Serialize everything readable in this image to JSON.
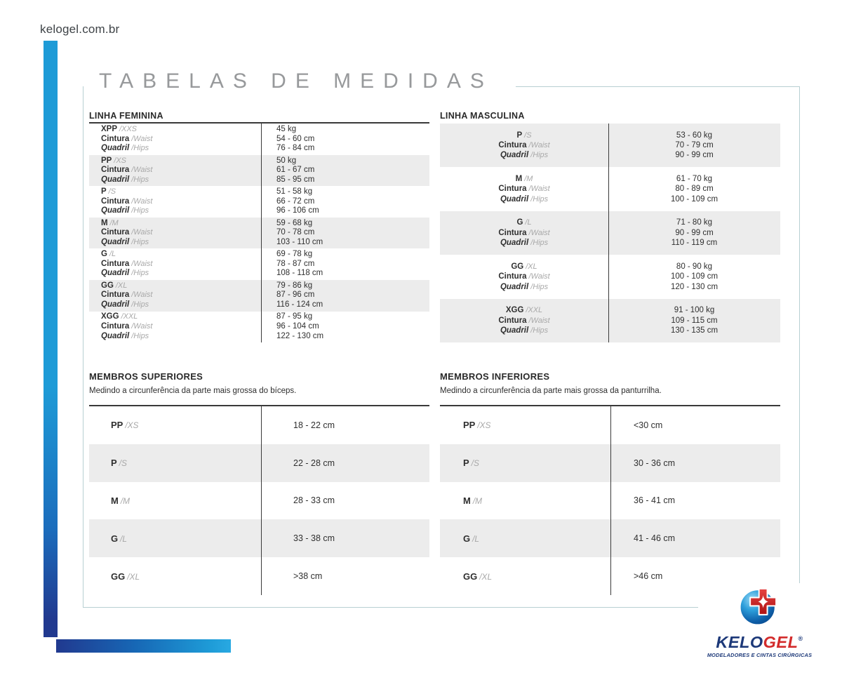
{
  "page": {
    "site": "kelogel.com.br",
    "title": "TABELAS DE MEDIDAS"
  },
  "labels": {
    "cintura": "Cintura",
    "waist": "/Waist",
    "quadril": "Quadril",
    "hips": "/Hips"
  },
  "linha_feminina": {
    "title": "LINHA FEMININA",
    "rows": [
      {
        "size": "XPP",
        "size_alt": "/XXS",
        "weight": "45 kg",
        "waist": "54 - 60 cm",
        "hips": "76 - 84 cm",
        "shaded": false
      },
      {
        "size": "PP",
        "size_alt": "/XS",
        "weight": "50 kg",
        "waist": "61 - 67 cm",
        "hips": "85 - 95 cm",
        "shaded": true
      },
      {
        "size": "P",
        "size_alt": "/S",
        "weight": "51 - 58 kg",
        "waist": "66 - 72 cm",
        "hips": "96 - 106 cm",
        "shaded": false
      },
      {
        "size": "M",
        "size_alt": "/M",
        "weight": "59 - 68 kg",
        "waist": "70 - 78 cm",
        "hips": "103 - 110 cm",
        "shaded": true
      },
      {
        "size": "G",
        "size_alt": "/L",
        "weight": "69 - 78 kg",
        "waist": "78 - 87 cm",
        "hips": "108 - 118 cm",
        "shaded": false
      },
      {
        "size": "GG",
        "size_alt": "/XL",
        "weight": "79 - 86 kg",
        "waist": "87 - 96 cm",
        "hips": "116 - 124 cm",
        "shaded": true
      },
      {
        "size": "XGG",
        "size_alt": "/XXL",
        "weight": "87 - 95 kg",
        "waist": "96 - 104 cm",
        "hips": "122 - 130 cm",
        "shaded": false
      }
    ]
  },
  "linha_masculina": {
    "title": "LINHA MASCULINA",
    "rows": [
      {
        "size": "P",
        "size_alt": "/S",
        "weight": "53 - 60 kg",
        "waist": "70 - 79 cm",
        "hips": "90 - 99 cm",
        "shaded": true
      },
      {
        "size": "M",
        "size_alt": "/M",
        "weight": "61 - 70 kg",
        "waist": "80 - 89 cm",
        "hips": "100 - 109 cm",
        "shaded": false
      },
      {
        "size": "G",
        "size_alt": "/L",
        "weight": "71 - 80 kg",
        "waist": "90 - 99 cm",
        "hips": "110 - 119 cm",
        "shaded": true
      },
      {
        "size": "GG",
        "size_alt": "/XL",
        "weight": "80 - 90 kg",
        "waist": "100 - 109 cm",
        "hips": "120 - 130 cm",
        "shaded": false
      },
      {
        "size": "XGG",
        "size_alt": "/XXL",
        "weight": "91 - 100 kg",
        "waist": "109 - 115 cm",
        "hips": "130 - 135 cm",
        "shaded": true
      }
    ]
  },
  "membros_superiores": {
    "title": "MEMBROS SUPERIORES",
    "description": "Medindo a circunferência da parte mais grossa do bíceps.",
    "rows": [
      {
        "size": "PP",
        "size_alt": "/XS",
        "value": "18 - 22 cm",
        "shaded": false
      },
      {
        "size": "P",
        "size_alt": "/S",
        "value": "22 - 28 cm",
        "shaded": true
      },
      {
        "size": "M",
        "size_alt": "/M",
        "value": "28 - 33 cm",
        "shaded": false
      },
      {
        "size": "G",
        "size_alt": "/L",
        "value": "33 - 38 cm",
        "shaded": true
      },
      {
        "size": "GG",
        "size_alt": "/XL",
        "value": ">38 cm",
        "shaded": false
      }
    ]
  },
  "membros_inferiores": {
    "title": "MEMBROS INFERIORES",
    "description": "Medindo a circunferência da parte mais grossa da panturrilha.",
    "rows": [
      {
        "size": "PP",
        "size_alt": "/XS",
        "value": "<30 cm",
        "shaded": false
      },
      {
        "size": "P",
        "size_alt": "/S",
        "value": "30 - 36 cm",
        "shaded": true
      },
      {
        "size": "M",
        "size_alt": "/M",
        "value": "36 - 41 cm",
        "shaded": false
      },
      {
        "size": "G",
        "size_alt": "/L",
        "value": "41 - 46 cm",
        "shaded": true
      },
      {
        "size": "GG",
        "size_alt": "/XL",
        "value": ">46 cm",
        "shaded": false
      }
    ]
  },
  "logo": {
    "brand_kelo": "KELO",
    "brand_gel": "GEL",
    "registered": "®",
    "tagline": "MODELADORES E CINTAS CIRÚRGICAS"
  },
  "colors": {
    "accent_blue_light": "#1E9BD7",
    "accent_blue_dark": "#21398F",
    "row_shade": "#ECECEC",
    "frame_border": "#B7CFD2",
    "title_gray": "#97999B",
    "brand_navy": "#1D3979",
    "brand_red": "#D32C2C"
  }
}
